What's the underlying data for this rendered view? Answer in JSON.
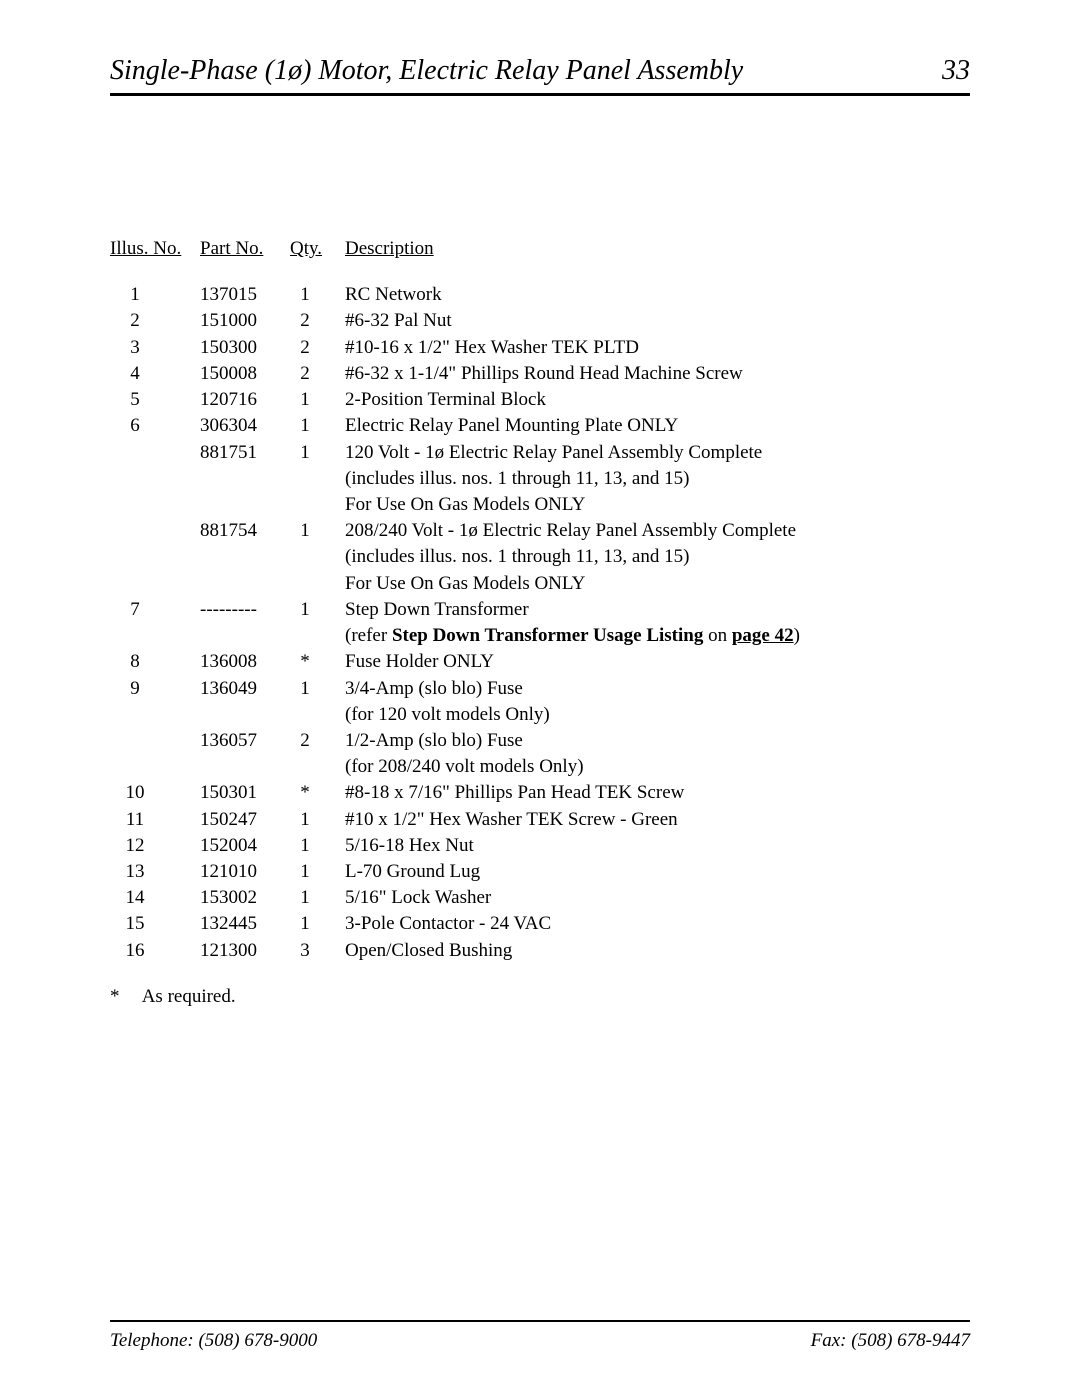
{
  "header": {
    "title": "Single-Phase (1ø) Motor, Electric Relay Panel Assembly",
    "page_number": "33"
  },
  "columns": {
    "illus": "Illus. No.",
    "part": "Part No.",
    "qty": "Qty.",
    "desc": "Description"
  },
  "rows": [
    {
      "illus": "1",
      "part": "137015",
      "qty": "1",
      "desc": [
        {
          "t": "RC Network"
        }
      ]
    },
    {
      "illus": "2",
      "part": "151000",
      "qty": "2",
      "desc": [
        {
          "t": "#6-32 Pal Nut"
        }
      ]
    },
    {
      "illus": "3",
      "part": "150300",
      "qty": "2",
      "desc": [
        {
          "t": "#10-16 x 1/2\" Hex Washer TEK PLTD"
        }
      ]
    },
    {
      "illus": "4",
      "part": "150008",
      "qty": "2",
      "desc": [
        {
          "t": "#6-32 x 1-1/4\" Phillips Round Head Machine Screw"
        }
      ]
    },
    {
      "illus": "5",
      "part": "120716",
      "qty": "1",
      "desc": [
        {
          "t": "2-Position Terminal Block"
        }
      ]
    },
    {
      "illus": "6",
      "part": "306304",
      "qty": "1",
      "desc": [
        {
          "t": "Electric Relay Panel Mounting Plate ONLY"
        }
      ]
    },
    {
      "illus": "",
      "part": "881751",
      "qty": "1",
      "desc": [
        {
          "t": "120 Volt - 1ø Electric Relay Panel Assembly Complete"
        },
        {
          "t": "(includes illus. nos. 1 through 11, 13, and 15)"
        },
        {
          "t": "For Use On Gas Models ONLY"
        }
      ]
    },
    {
      "illus": "",
      "part": "881754",
      "qty": "1",
      "desc": [
        {
          "t": "208/240 Volt - 1ø Electric Relay Panel Assembly Complete"
        },
        {
          "t": "(includes illus. nos. 1 through 11, 13, and 15)"
        },
        {
          "t": "For Use On Gas Models ONLY"
        }
      ]
    },
    {
      "illus": "7",
      "part": "---------",
      "qty": "1",
      "desc": [
        {
          "t": "Step Down Transformer"
        },
        {
          "rich": true,
          "pre": "(refer ",
          "bold": "Step Down Transformer Usage Listing",
          "mid": " on ",
          "link": "page 42",
          "post": ")"
        }
      ]
    },
    {
      "illus": "8",
      "part": "136008",
      "qty": "*",
      "desc": [
        {
          "t": "Fuse Holder ONLY"
        }
      ]
    },
    {
      "illus": "9",
      "part": "136049",
      "qty": "1",
      "desc": [
        {
          "t": "3/4-Amp (slo blo) Fuse"
        },
        {
          "t": "(for 120 volt models Only)"
        }
      ]
    },
    {
      "illus": "",
      "part": "136057",
      "qty": "2",
      "desc": [
        {
          "t": "1/2-Amp (slo blo) Fuse"
        },
        {
          "t": "(for 208/240 volt models Only)"
        }
      ]
    },
    {
      "illus": "10",
      "part": "150301",
      "qty": "*",
      "desc": [
        {
          "t": "#8-18 x 7/16\" Phillips Pan Head TEK Screw"
        }
      ]
    },
    {
      "illus": "11",
      "part": "150247",
      "qty": "1",
      "desc": [
        {
          "t": "#10 x 1/2\" Hex Washer TEK Screw - Green"
        }
      ]
    },
    {
      "illus": "12",
      "part": "152004",
      "qty": "1",
      "desc": [
        {
          "t": "5/16-18 Hex Nut"
        }
      ]
    },
    {
      "illus": "13",
      "part": "121010",
      "qty": "1",
      "desc": [
        {
          "t": "L-70 Ground Lug"
        }
      ]
    },
    {
      "illus": "14",
      "part": "153002",
      "qty": "1",
      "desc": [
        {
          "t": "5/16\" Lock Washer"
        }
      ]
    },
    {
      "illus": "15",
      "part": "132445",
      "qty": "1",
      "desc": [
        {
          "t": "3-Pole Contactor - 24 VAC"
        }
      ]
    },
    {
      "illus": "16",
      "part": "121300",
      "qty": "3",
      "desc": [
        {
          "t": "Open/Closed Bushing"
        }
      ]
    }
  ],
  "footnote": {
    "marker": "*",
    "text": "As required."
  },
  "footer": {
    "telephone": "Telephone: (508) 678-9000",
    "fax": "Fax: (508) 678-9447"
  }
}
